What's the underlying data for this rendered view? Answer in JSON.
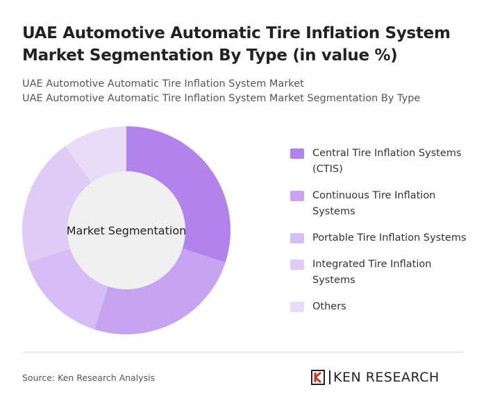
{
  "chart_data": {
    "type": "pie",
    "title": "UAE Automotive Automatic Tire Inflation System Market Segmentation By Type (in value %)",
    "subtitle": [
      "UAE Automotive Automatic Tire Inflation System Market",
      "UAE Automotive Automatic Tire Inflation System Market Segmentation By Type"
    ],
    "center_label": "Market Segmentation",
    "categories": [
      "Central Tire Inflation Systems (CTIS)",
      "Continuous Tire Inflation Systems",
      "Portable Tire Inflation Systems",
      "Integrated Tire Inflation Systems",
      "Others"
    ],
    "values": [
      30,
      25,
      15,
      20,
      10
    ],
    "colors": [
      "#b283ea",
      "#c7a3f1",
      "#d6bdf5",
      "#dfcbf6",
      "#e9dcf9"
    ],
    "donut": true,
    "source": "Source: Ken Research Analysis",
    "brand": "KEN RESEARCH"
  }
}
